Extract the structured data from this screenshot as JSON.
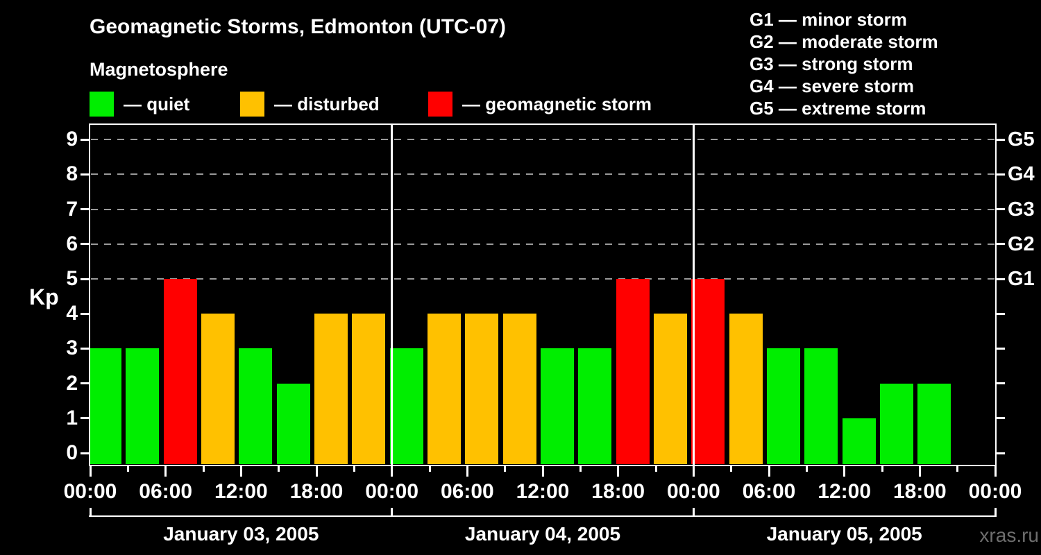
{
  "header": {
    "title": "Geomagnetic Storms, Edmonton (UTC-07)",
    "legend_heading": "Magnetosphere",
    "legend_items": [
      {
        "name": "quiet",
        "label": "— quiet",
        "color": "#00ee00"
      },
      {
        "name": "disturbed",
        "label": "— disturbed",
        "color": "#ffc100"
      },
      {
        "name": "storm",
        "label": "— geomagnetic storm",
        "color": "#ff0000"
      }
    ],
    "storm_scale_legend": [
      {
        "text": "G1 — minor storm"
      },
      {
        "text": "G2 — moderate storm"
      },
      {
        "text": "G3 — strong storm"
      },
      {
        "text": "G4 — severe storm"
      },
      {
        "text": "G5 — extreme storm"
      }
    ]
  },
  "watermark": "xras.ru",
  "chart_data": {
    "type": "bar",
    "title": "Geomagnetic Storms, Edmonton (UTC-07)",
    "ylabel": "Kp",
    "ylim": [
      0,
      9.5
    ],
    "yticks": [
      0,
      1,
      2,
      3,
      4,
      5,
      6,
      7,
      8,
      9
    ],
    "grid_levels_kp": [
      5,
      6,
      7,
      8,
      9
    ],
    "grid_style": "dashed",
    "legend_position": "top",
    "right_axis_labels": [
      {
        "kp": 5,
        "label": "G1"
      },
      {
        "kp": 6,
        "label": "G2"
      },
      {
        "kp": 7,
        "label": "G3"
      },
      {
        "kp": 8,
        "label": "G4"
      },
      {
        "kp": 9,
        "label": "G5"
      }
    ],
    "x_interval_hours": 3,
    "x_tick_labels": [
      "00:00",
      "06:00",
      "12:00",
      "18:00",
      "00:00",
      "06:00",
      "12:00",
      "18:00",
      "00:00",
      "06:00",
      "12:00",
      "18:00",
      "00:00"
    ],
    "colors": {
      "quiet": "#00ee00",
      "disturbed": "#ffc100",
      "storm": "#ff0000"
    },
    "color_rule": {
      "quiet_kp_max": 3,
      "disturbed_kp": 4,
      "storm_kp_min": 5
    },
    "days": [
      {
        "date": "January 03, 2005",
        "kp_values": [
          3,
          3,
          5,
          4,
          3,
          2,
          4,
          4
        ]
      },
      {
        "date": "January 04, 2005",
        "kp_values": [
          3,
          4,
          4,
          4,
          3,
          3,
          5,
          4
        ]
      },
      {
        "date": "January 05, 2005",
        "kp_values": [
          5,
          4,
          3,
          3,
          1,
          2,
          2,
          null
        ]
      }
    ]
  }
}
